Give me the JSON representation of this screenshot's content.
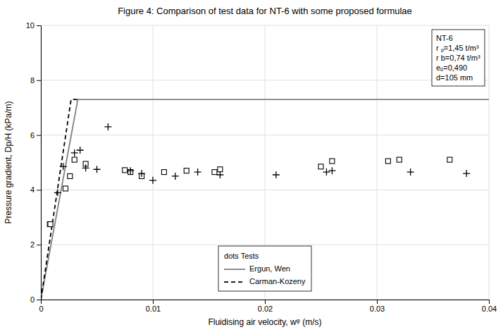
{
  "chart_data": {
    "type": "line",
    "title": "Figure 4: Comparison of test data for NT-6 with some proposed formulae",
    "x_label": "Fluidising air velocity, wᵠ (m/s)",
    "y_label": "Pressure gradient, Dp/H (kPa/m)",
    "xlim": [
      0,
      0.04
    ],
    "ylim": [
      0,
      10
    ],
    "xticks": [
      0,
      0.01,
      0.02,
      0.03,
      0.04
    ],
    "yticks": [
      0,
      2,
      4,
      6,
      8,
      10
    ],
    "grid": true,
    "legend": "lower center",
    "legend_title": "dots  Tests",
    "annotations": [
      "NT-6",
      "r ₚ=1,45 t/m³",
      "r b=0,74 t/m³",
      "eₒ=0,490",
      "d=105 mm"
    ],
    "series": [
      {
        "name": "Ergun, Wen",
        "type": "line",
        "line_style": "solid",
        "color": "#808080",
        "x": [
          0,
          0.0033,
          0.0037,
          0.04
        ],
        "values": [
          0,
          7.3,
          7.3,
          7.3
        ]
      },
      {
        "name": "Carman-Kozeny",
        "type": "line",
        "line_style": "dashed",
        "color": "#000000",
        "x": [
          0,
          0.0027,
          0.0035
        ],
        "values": [
          0,
          7.3,
          7.3
        ]
      },
      {
        "type": "scatter",
        "marker": "square",
        "color": "#000000",
        "x": [
          0.0008,
          0.00085,
          0.0022,
          0.0026,
          0.003,
          0.004,
          0.0075,
          0.008,
          0.009,
          0.011,
          0.013,
          0.0155,
          0.016,
          0.025,
          0.026,
          0.031,
          0.032,
          0.0365
        ],
        "values": [
          2.75,
          2.75,
          4.05,
          4.5,
          5.1,
          4.95,
          4.72,
          4.65,
          4.5,
          4.65,
          4.7,
          4.65,
          4.75,
          4.85,
          5.05,
          5.05,
          5.1,
          5.1
        ]
      },
      {
        "type": "scatter",
        "marker": "plus",
        "color": "#000000",
        "x": [
          0.0015,
          0.002,
          0.003,
          0.0035,
          0.004,
          0.005,
          0.006,
          0.008,
          0.009,
          0.01,
          0.012,
          0.014,
          0.016,
          0.021,
          0.0255,
          0.026,
          0.033,
          0.038
        ],
        "values": [
          3.9,
          4.85,
          5.35,
          5.45,
          4.8,
          4.75,
          6.3,
          4.7,
          4.6,
          4.35,
          4.5,
          4.65,
          4.55,
          4.55,
          4.65,
          4.7,
          4.65,
          4.6
        ]
      }
    ]
  }
}
